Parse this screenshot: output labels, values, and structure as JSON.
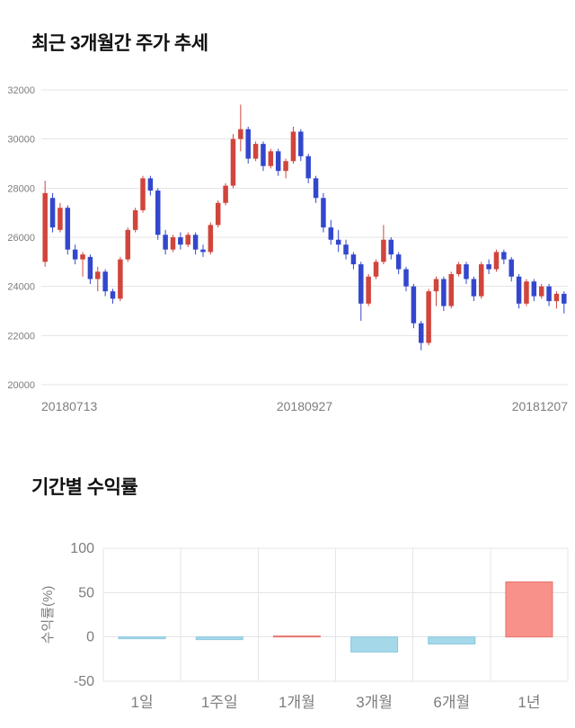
{
  "chart_data": [
    {
      "type": "candlestick",
      "title": "최근 3개월간 주가 추세",
      "ylim": [
        20000,
        32000
      ],
      "y_ticks": [
        32000,
        30000,
        28000,
        26000,
        24000,
        22000,
        20000
      ],
      "x_tick_labels": [
        "20180713",
        "20180927",
        "20181207"
      ],
      "grid": true,
      "legend": "none",
      "up_color": "#d0453c",
      "down_color": "#3347cd",
      "grid_color": "#e5e5e5",
      "axis_text_color": "#7d7d7d",
      "ohlc": [
        [
          25000,
          28300,
          24800,
          27800
        ],
        [
          27600,
          27800,
          26200,
          26400
        ],
        [
          26300,
          27400,
          26200,
          27200
        ],
        [
          27200,
          27300,
          25300,
          25500
        ],
        [
          25500,
          25700,
          24900,
          25100
        ],
        [
          25100,
          25400,
          24400,
          25300
        ],
        [
          25200,
          25300,
          24100,
          24300
        ],
        [
          24300,
          24800,
          23800,
          24600
        ],
        [
          24600,
          24700,
          23600,
          23800
        ],
        [
          23800,
          23900,
          23300,
          23500
        ],
        [
          23500,
          25200,
          23400,
          25100
        ],
        [
          25100,
          26400,
          25000,
          26300
        ],
        [
          26300,
          27200,
          26200,
          27100
        ],
        [
          27100,
          28500,
          27000,
          28400
        ],
        [
          28400,
          28500,
          27700,
          27900
        ],
        [
          27900,
          28000,
          25900,
          26100
        ],
        [
          26100,
          26300,
          25300,
          25500
        ],
        [
          25500,
          26100,
          25400,
          26000
        ],
        [
          26000,
          26200,
          25500,
          25700
        ],
        [
          25700,
          26200,
          25600,
          26100
        ],
        [
          26100,
          26200,
          25300,
          25500
        ],
        [
          25500,
          25700,
          25200,
          25400
        ],
        [
          25400,
          26600,
          25300,
          26500
        ],
        [
          26500,
          27500,
          26400,
          27400
        ],
        [
          27400,
          28200,
          27300,
          28100
        ],
        [
          28100,
          30200,
          28000,
          30000
        ],
        [
          30000,
          31400,
          29500,
          30400
        ],
        [
          30400,
          30500,
          29000,
          29200
        ],
        [
          29200,
          29900,
          29100,
          29800
        ],
        [
          29800,
          29900,
          28700,
          28900
        ],
        [
          28900,
          29600,
          28800,
          29500
        ],
        [
          29500,
          29600,
          28500,
          28700
        ],
        [
          28700,
          29200,
          28400,
          29100
        ],
        [
          29100,
          30500,
          29000,
          30300
        ],
        [
          30300,
          30400,
          29100,
          29300
        ],
        [
          29300,
          29400,
          28200,
          28400
        ],
        [
          28400,
          28500,
          27400,
          27600
        ],
        [
          27600,
          27800,
          26200,
          26400
        ],
        [
          26400,
          26700,
          25700,
          25900
        ],
        [
          25900,
          26300,
          25400,
          25700
        ],
        [
          25700,
          25900,
          25100,
          25300
        ],
        [
          25300,
          25400,
          24700,
          24900
        ],
        [
          24900,
          25000,
          22600,
          23300
        ],
        [
          23300,
          24500,
          23200,
          24400
        ],
        [
          24400,
          25100,
          24300,
          25000
        ],
        [
          25000,
          26500,
          24900,
          25900
        ],
        [
          25900,
          26000,
          25100,
          25300
        ],
        [
          25300,
          25400,
          24500,
          24700
        ],
        [
          24700,
          24800,
          23800,
          24000
        ],
        [
          24000,
          24100,
          22300,
          22500
        ],
        [
          22500,
          22600,
          21400,
          21700
        ],
        [
          21700,
          23900,
          21600,
          23800
        ],
        [
          23800,
          24400,
          23200,
          24300
        ],
        [
          24300,
          24400,
          23000,
          23200
        ],
        [
          23200,
          24600,
          23100,
          24500
        ],
        [
          24500,
          25000,
          24400,
          24900
        ],
        [
          24900,
          25000,
          24100,
          24300
        ],
        [
          24300,
          24400,
          23400,
          23600
        ],
        [
          23600,
          25000,
          23500,
          24900
        ],
        [
          24900,
          25100,
          24500,
          24700
        ],
        [
          24700,
          25500,
          24600,
          25400
        ],
        [
          25400,
          25500,
          24900,
          25100
        ],
        [
          25100,
          25200,
          24200,
          24400
        ],
        [
          24400,
          24500,
          23100,
          23300
        ],
        [
          23300,
          24300,
          23200,
          24200
        ],
        [
          24200,
          24300,
          23400,
          23600
        ],
        [
          23600,
          24100,
          23500,
          24000
        ],
        [
          24000,
          24100,
          23200,
          23400
        ],
        [
          23400,
          23800,
          23100,
          23700
        ],
        [
          23700,
          23800,
          22900,
          23300
        ]
      ]
    },
    {
      "type": "bar",
      "title": "기간별 수익률",
      "ylabel": "수익률(%)",
      "ylim": [
        -50,
        100
      ],
      "y_ticks": [
        100,
        50,
        0,
        -50
      ],
      "categories": [
        "1일",
        "1주일",
        "1개월",
        "3개월",
        "6개월",
        "1년"
      ],
      "values": [
        -2,
        -3,
        1,
        -17,
        -8,
        62
      ],
      "grid": true,
      "legend": "none",
      "positive_color": "#f8918a",
      "positive_edge": "#e8726a",
      "negative_color": "#a5d8e9",
      "negative_edge": "#8cc9de",
      "grid_color": "#e5e5e5",
      "axis_text_color": "#7d7d7d"
    }
  ]
}
